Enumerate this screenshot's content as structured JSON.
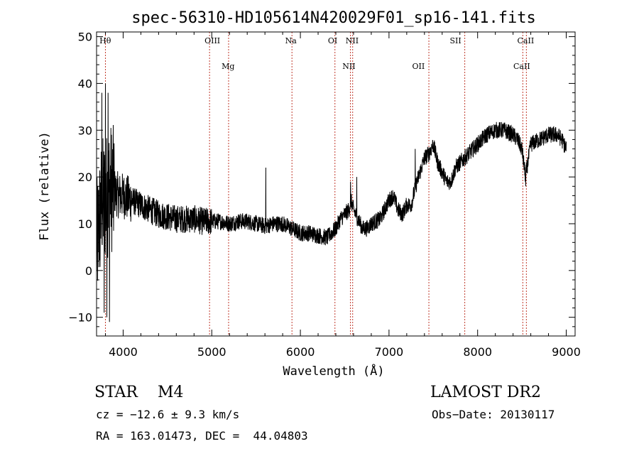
{
  "chart_data": {
    "type": "line",
    "title": "spec-56310-HD105614N420029F01_sp16-141.fits",
    "xlabel": "Wavelength (Å)",
    "ylabel": "Flux (relative)",
    "xlim": [
      3700,
      9100
    ],
    "ylim": [
      -14,
      51
    ],
    "xticks": [
      4000,
      5000,
      6000,
      7000,
      8000,
      9000
    ],
    "yticks": [
      -10,
      0,
      10,
      20,
      30,
      40,
      50
    ],
    "grid": false,
    "series": [
      {
        "color": "#000000",
        "anchors": {
          "x": [
            3700,
            3760,
            3800,
            3850,
            3900,
            3950,
            4000,
            4100,
            4200,
            4300,
            4400,
            4500,
            4600,
            4700,
            4800,
            4900,
            5000,
            5100,
            5200,
            5300,
            5400,
            5500,
            5600,
            5700,
            5800,
            5900,
            6000,
            6100,
            6200,
            6300,
            6400,
            6450,
            6500,
            6550,
            6570,
            6600,
            6650,
            6700,
            6750,
            6800,
            6900,
            7000,
            7050,
            7100,
            7150,
            7200,
            7250,
            7300,
            7350,
            7400,
            7450,
            7500,
            7550,
            7600,
            7650,
            7700,
            7750,
            7800,
            7850,
            7900,
            7950,
            8000,
            8100,
            8200,
            8300,
            8400,
            8450,
            8500,
            8540,
            8600,
            8700,
            8800,
            8900,
            8950,
            9000
          ],
          "y": [
            5,
            15,
            15,
            18,
            17,
            16,
            16,
            15,
            14,
            13,
            12,
            11.5,
            11,
            11,
            11,
            10.5,
            10.5,
            10.5,
            10,
            10.5,
            10.5,
            10,
            9.5,
            10,
            10,
            9,
            8,
            8,
            7.5,
            7,
            9,
            11,
            12,
            13,
            15,
            13,
            11,
            9,
            9,
            10,
            11,
            15,
            16,
            13,
            12,
            14,
            14,
            18,
            21,
            24,
            25,
            27,
            23,
            21,
            19,
            19,
            22,
            23,
            24,
            25,
            26,
            27,
            29,
            30,
            30,
            29,
            28,
            26,
            20,
            27,
            28,
            29,
            29,
            28,
            26
          ]
        },
        "spikes": {
          "x": [
            3760,
            3785,
            3800,
            3815,
            3830,
            3845,
            5610,
            6565,
            6635,
            7295,
            8542
          ],
          "y": [
            38,
            -9,
            40,
            -10,
            38,
            -11,
            22,
            19,
            20,
            26,
            18
          ]
        }
      }
    ],
    "annotations": [
      {
        "label": "Hθ",
        "x": 3798,
        "row": 1
      },
      {
        "label": "OIII",
        "x": 5007,
        "row": 1
      },
      {
        "label": "Mg",
        "x": 5184,
        "row": 2
      },
      {
        "label": "Na",
        "x": 5893,
        "row": 1
      },
      {
        "label": "OI",
        "x": 6364,
        "row": 1
      },
      {
        "label": "NII",
        "x": 6584,
        "row": 1
      },
      {
        "label": "NII",
        "x": 6548,
        "row": 2
      },
      {
        "label": "OII",
        "x": 7332,
        "row": 2
      },
      {
        "label": "SII",
        "x": 7751,
        "row": 1
      },
      {
        "label": "CaII",
        "x": 8542,
        "row": 1
      },
      {
        "label": "CaII",
        "x": 8498,
        "row": 2
      }
    ],
    "line_markers_x": [
      3800,
      4975,
      5190,
      5905,
      6390,
      6565,
      6590,
      7450,
      7855,
      8510,
      8550
    ]
  },
  "info": {
    "object_type": "STAR",
    "subclass": "M4",
    "survey": "LAMOST DR2",
    "velocity": "cz = −12.6 ± 9.3 km/s",
    "obs_date": "Obs−Date: 20130117",
    "coordinates": "RA = 163.01473, DEC =  44.04803"
  }
}
